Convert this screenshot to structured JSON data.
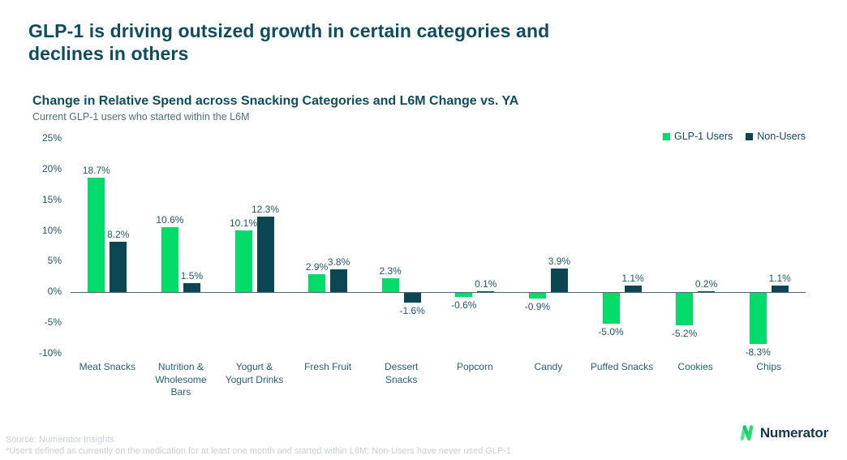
{
  "header": {
    "title": "GLP-1 is driving outsized growth in certain categories and\ndeclines in others"
  },
  "chart_data": {
    "type": "bar",
    "title": "Change in Relative Spend across Snacking Categories and L6M Change vs. YA",
    "subtitle": "Current GLP-1 users who started within the L6M",
    "categories": [
      "Meat Snacks",
      "Nutrition & Wholesome Bars",
      "Yogurt & Yogurt Drinks",
      "Fresh Fruit",
      "Dessert Snacks",
      "Popcorn",
      "Candy",
      "Puffed Snacks",
      "Cookies",
      "Chips"
    ],
    "series": [
      {
        "name": "GLP-1 Users",
        "color": "#00db69",
        "values": [
          18.7,
          10.6,
          10.1,
          2.9,
          2.3,
          -0.6,
          -0.9,
          -5.0,
          -5.2,
          -8.3
        ]
      },
      {
        "name": "Non-Users",
        "color": "#0c4653",
        "values": [
          8.2,
          1.5,
          12.3,
          3.8,
          -1.6,
          0.1,
          3.9,
          1.1,
          0.2,
          1.1
        ]
      }
    ],
    "ylim": [
      -10,
      25
    ],
    "y_ticks": [
      25,
      20,
      15,
      10,
      5,
      0,
      -5,
      -10
    ],
    "y_tick_suffix": "%",
    "value_suffix": "%",
    "grid": false,
    "legend_position": "top-right"
  },
  "footer": {
    "source": "Source: Numerator Insights",
    "note": "*Users defined as currently on the medication for at least one month and started within L6M; Non-Users have never used GLP-1",
    "brand": "Numerator"
  },
  "colors": {
    "title_teal": "#0e4d5e",
    "accent_green": "#00db69",
    "dark_teal": "#0c4653",
    "axis_text": "#1d5868",
    "footer_text": "#c6d1d6"
  }
}
